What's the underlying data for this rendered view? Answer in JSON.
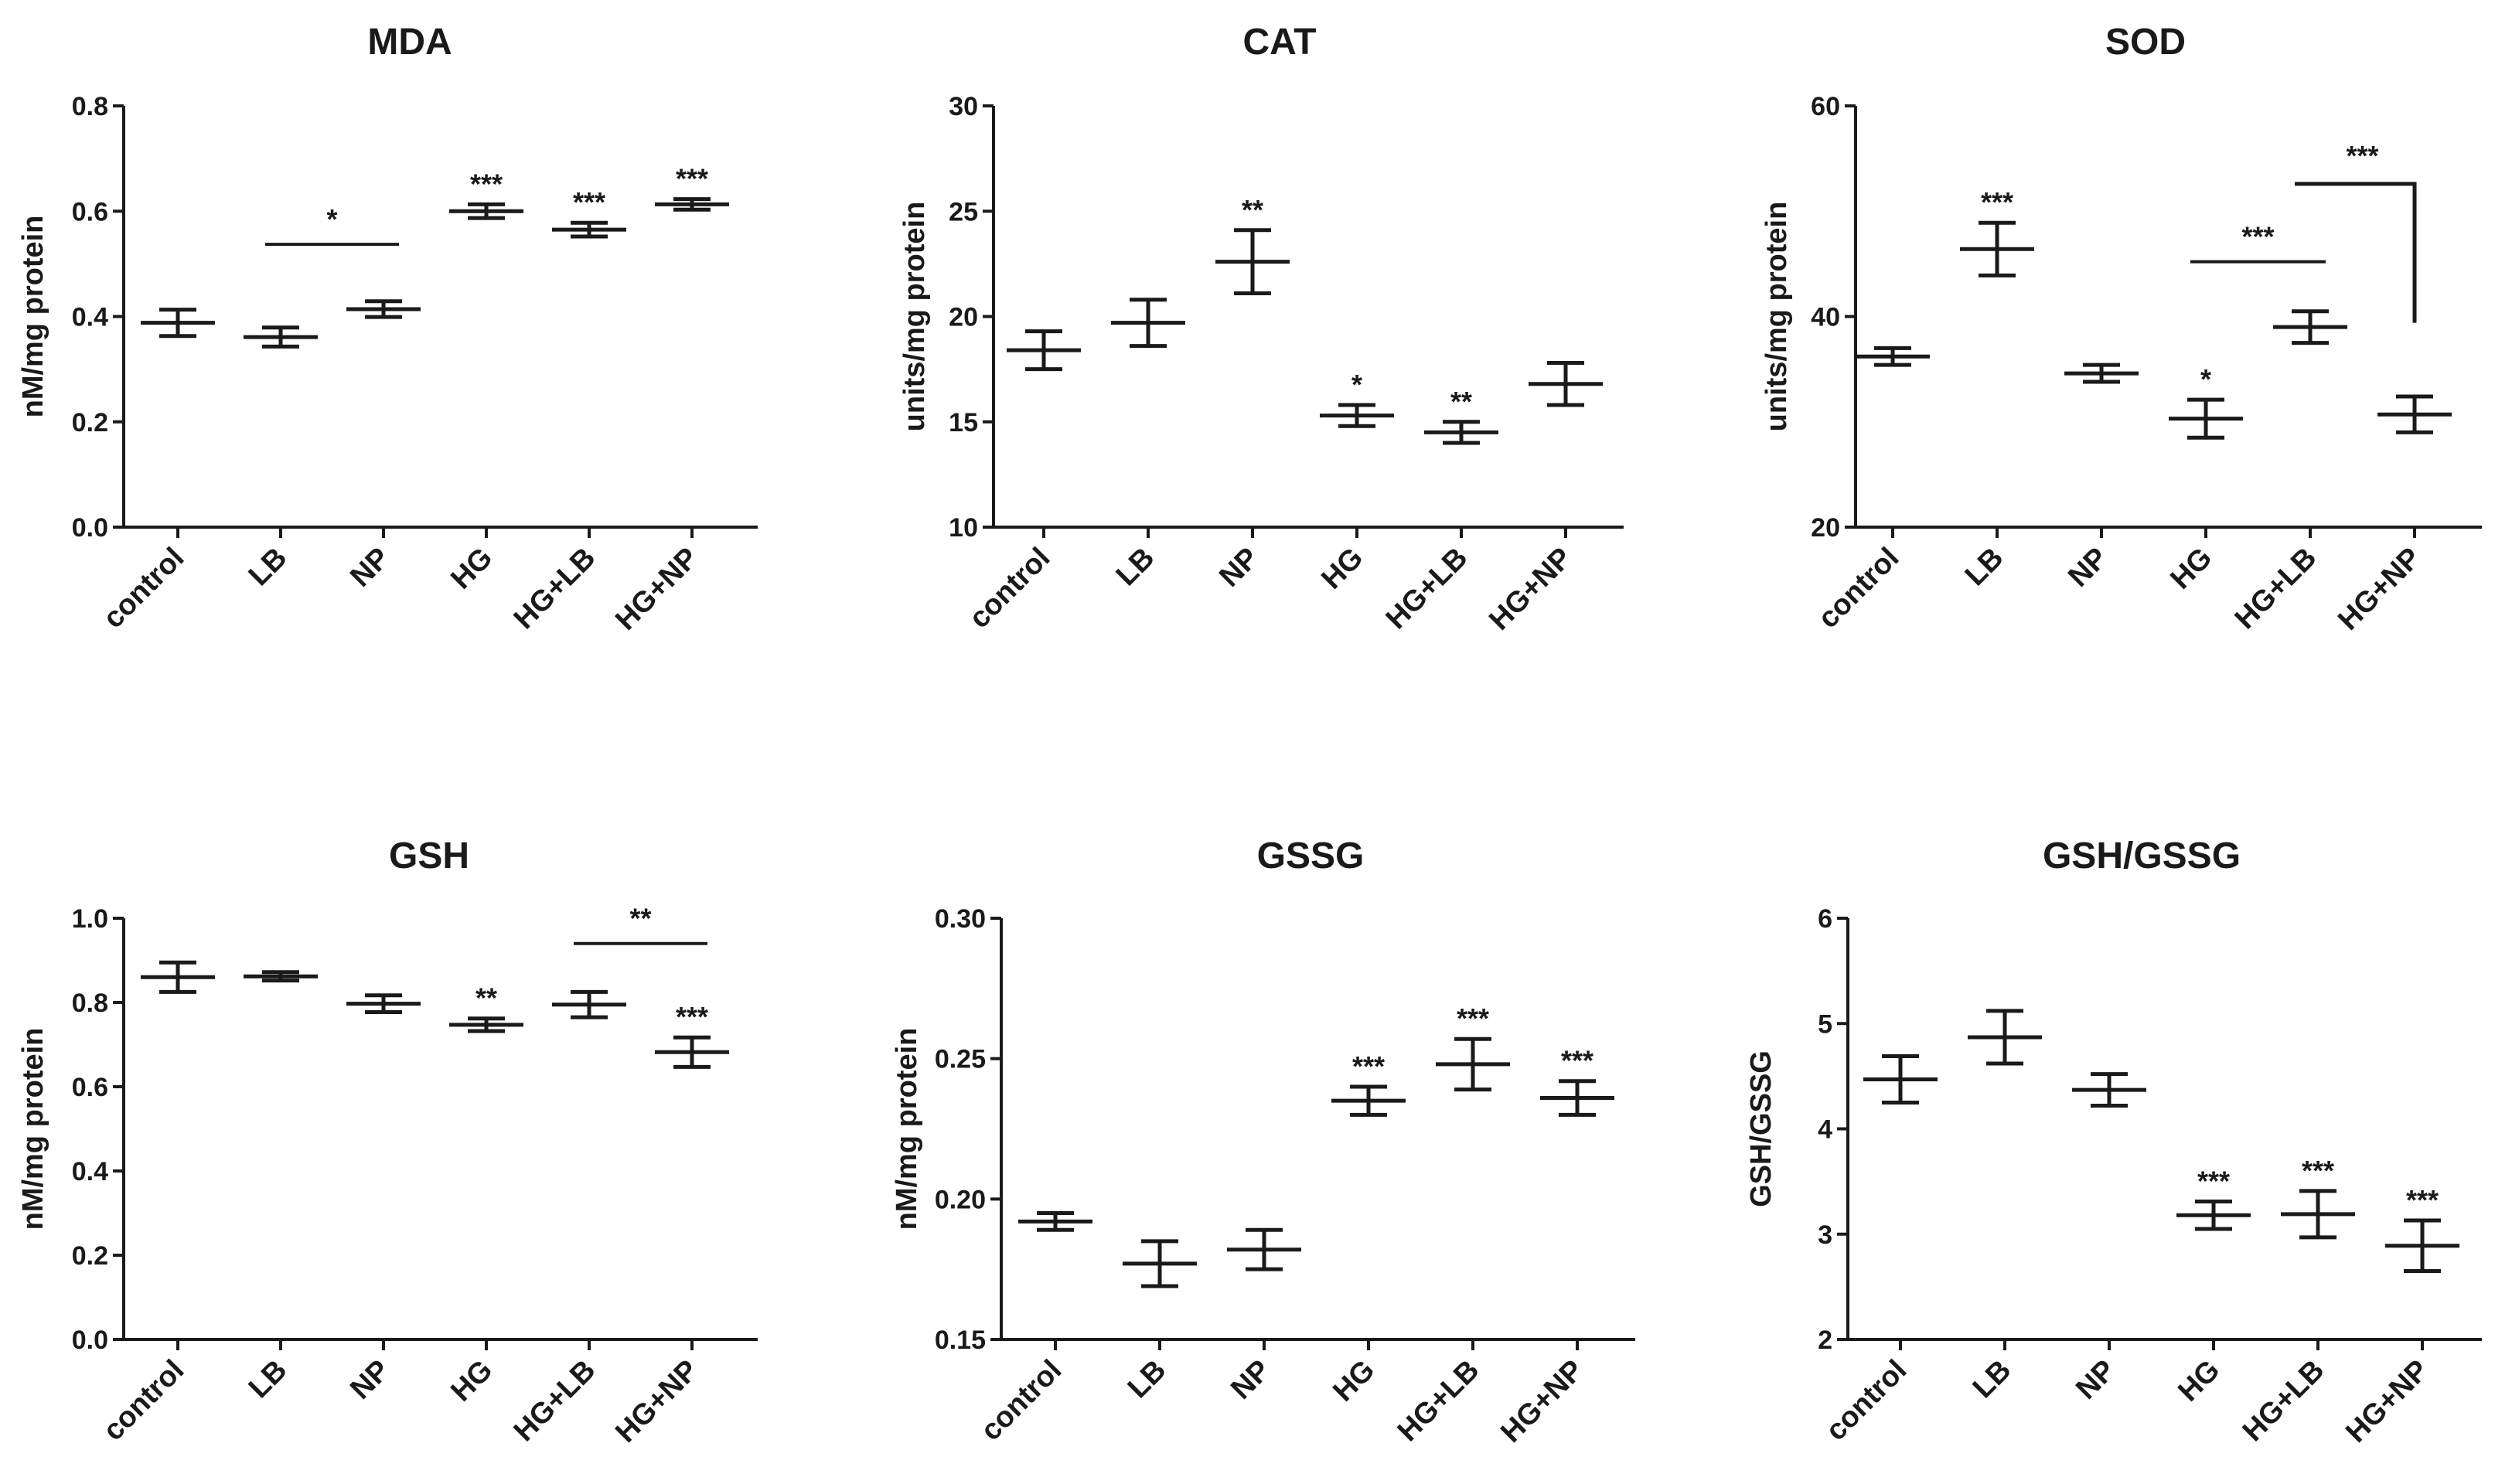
{
  "chart_data": [
    {
      "type": "scatter",
      "title": "MDA",
      "ylabel": "nM/mg protein",
      "xlabel": "",
      "ylim": [
        0,
        0.8
      ],
      "yticks": [
        0.0,
        0.2,
        0.4,
        0.6,
        0.8
      ],
      "ytick_labels": [
        "0.0",
        "0.2",
        "0.4",
        "0.6",
        "0.8"
      ],
      "categories": [
        "control",
        "LB",
        "NP",
        "HG",
        "HG+LB",
        "HG+NP"
      ],
      "means": [
        0.388,
        0.361,
        0.414,
        0.6,
        0.565,
        0.613
      ],
      "errors": [
        0.025,
        0.018,
        0.015,
        0.013,
        0.013,
        0.01
      ],
      "annotations": [
        "",
        "",
        "",
        "***",
        "***",
        "***"
      ],
      "brackets": [
        {
          "from": 1,
          "to": 2,
          "y": 0.537,
          "label": "*"
        }
      ]
    },
    {
      "type": "scatter",
      "title": "CAT",
      "ylabel": "units/mg protein",
      "xlabel": "",
      "ylim": [
        10,
        30
      ],
      "yticks": [
        10,
        15,
        20,
        25,
        30
      ],
      "ytick_labels": [
        "10",
        "15",
        "20",
        "25",
        "30"
      ],
      "categories": [
        "control",
        "LB",
        "NP",
        "HG",
        "HG+LB",
        "HG+NP"
      ],
      "means": [
        18.4,
        19.7,
        22.6,
        15.3,
        14.5,
        16.8
      ],
      "errors": [
        0.9,
        1.1,
        1.5,
        0.5,
        0.5,
        1.0
      ],
      "annotations": [
        "",
        "",
        "**",
        "*",
        "**",
        ""
      ],
      "brackets": []
    },
    {
      "type": "scatter",
      "title": "SOD",
      "ylabel": "units/mg protein",
      "xlabel": "",
      "ylim": [
        20,
        60
      ],
      "yticks": [
        20,
        40,
        60
      ],
      "ytick_labels": [
        "20",
        "40",
        "60"
      ],
      "categories": [
        "control",
        "LB",
        "NP",
        "HG",
        "HG+LB",
        "HG+NP"
      ],
      "means": [
        36.2,
        46.4,
        34.6,
        30.3,
        39.0,
        30.7
      ],
      "errors": [
        0.8,
        2.5,
        0.8,
        1.8,
        1.5,
        1.7
      ],
      "annotations": [
        "",
        "***",
        "",
        "*",
        "",
        ""
      ],
      "brackets": [
        {
          "from": 3,
          "to": 4,
          "y": 45.2,
          "label": "***"
        }
      ],
      "elbows": [
        {
          "x_from": 4,
          "x_to": 5,
          "y_top": 52.6,
          "y_bottom": 39.4,
          "label": "***"
        }
      ]
    },
    {
      "type": "scatter",
      "title": "GSH",
      "ylabel": "nM/mg protein",
      "xlabel": "",
      "ylim": [
        0,
        1.0
      ],
      "yticks": [
        0.0,
        0.2,
        0.4,
        0.6,
        0.8,
        1.0
      ],
      "ytick_labels": [
        "0.0",
        "0.2",
        "0.4",
        "0.6",
        "0.8",
        "1.0"
      ],
      "categories": [
        "control",
        "LB",
        "NP",
        "HG",
        "HG+LB",
        "HG+NP"
      ],
      "means": [
        0.86,
        0.862,
        0.797,
        0.747,
        0.795,
        0.682
      ],
      "errors": [
        0.035,
        0.01,
        0.02,
        0.015,
        0.03,
        0.035
      ],
      "annotations": [
        "",
        "",
        "",
        "**",
        "",
        "***"
      ],
      "brackets": [
        {
          "from": 4,
          "to": 5,
          "y": 0.94,
          "label": "**"
        }
      ]
    },
    {
      "type": "scatter",
      "title": "GSSG",
      "ylabel": "nM/mg protein",
      "xlabel": "",
      "ylim": [
        0.15,
        0.3
      ],
      "yticks": [
        0.15,
        0.2,
        0.25,
        0.3
      ],
      "ytick_labels": [
        "0.15",
        "0.20",
        "0.25",
        "0.30"
      ],
      "categories": [
        "control",
        "LB",
        "NP",
        "HG",
        "HG+LB",
        "HG+NP"
      ],
      "means": [
        0.192,
        0.177,
        0.182,
        0.235,
        0.248,
        0.236
      ],
      "errors": [
        0.003,
        0.008,
        0.007,
        0.005,
        0.009,
        0.006
      ],
      "annotations": [
        "",
        "",
        "",
        "***",
        "***",
        "***"
      ],
      "brackets": []
    },
    {
      "type": "scatter",
      "title": "GSH/GSSG",
      "ylabel": "GSH/GSSG",
      "xlabel": "",
      "ylim": [
        2,
        6
      ],
      "yticks": [
        2,
        3,
        4,
        5,
        6
      ],
      "ytick_labels": [
        "2",
        "3",
        "4",
        "5",
        "6"
      ],
      "categories": [
        "control",
        "LB",
        "NP",
        "HG",
        "HG+LB",
        "HG+NP"
      ],
      "means": [
        4.47,
        4.87,
        4.37,
        3.18,
        3.19,
        2.89
      ],
      "errors": [
        0.22,
        0.25,
        0.15,
        0.13,
        0.22,
        0.24
      ],
      "annotations": [
        "",
        "",
        "",
        "***",
        "***",
        "***"
      ],
      "brackets": []
    }
  ]
}
